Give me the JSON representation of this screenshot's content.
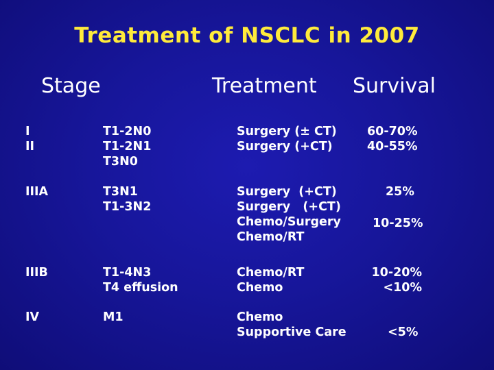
{
  "slide": {
    "title": "Treatment of NSCLC in 2007",
    "headers": {
      "stage": "Stage",
      "treatment": "Treatment",
      "survival": "Survival"
    },
    "rows": [
      {
        "stage": "I\nII",
        "tnm": "T1-2N0\nT1-2N1\nT3N0",
        "treatment": "Surgery (± CT)\nSurgery (+CT)",
        "survival": "60-70%\n40-55%"
      },
      {
        "stage": "IIIA",
        "tnm": "T3N1\nT1-3N2",
        "treatment": "Surgery  (+CT)\nSurgery   (+CT)\nChemo/Surgery\nChemo/RT",
        "survival_a": "25%",
        "survival_b": "10-25%"
      },
      {
        "stage": "IIIB",
        "tnm": "T1-4N3\nT4 effusion",
        "treatment": "Chemo/RT\nChemo",
        "survival": "10-20%\n<10%"
      },
      {
        "stage": "IV",
        "tnm": "M1",
        "treatment": "Chemo\nSupportive Care",
        "survival": "<5%"
      }
    ]
  }
}
